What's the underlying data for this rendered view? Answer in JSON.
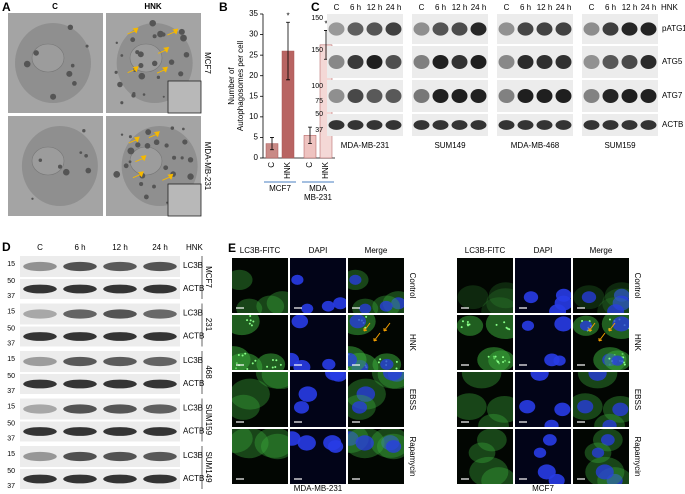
{
  "panel_a": {
    "label": "A",
    "conditions": [
      "C",
      "HNK"
    ],
    "cell_lines": [
      "MCF7",
      "MDA-MB-231"
    ]
  },
  "chart_data": {
    "type": "bar",
    "label": "B",
    "y_label": [
      "Number of",
      "Autophagosomes per cell"
    ],
    "categories": [
      "C",
      "HNK",
      "C",
      "HNK"
    ],
    "groups": [
      [
        "MCF7"
      ],
      [
        "MDA",
        "MB-231"
      ]
    ],
    "values": [
      3.5,
      26,
      5.5,
      27.5
    ],
    "errors": [
      1.5,
      7,
      2,
      3.5
    ],
    "markers": [
      null,
      "*",
      null,
      "*"
    ],
    "colors": [
      "#c98a86",
      "#b86462",
      "#eec3c0",
      "#f4d8d6"
    ],
    "ylim": [
      0,
      35
    ],
    "yticks": [
      0,
      5,
      10,
      15,
      20,
      25,
      30,
      35
    ]
  },
  "panel_c": {
    "label": "C",
    "lanes": [
      "C",
      "6 h",
      "12 h",
      "24 h"
    ],
    "treatment": "HNK",
    "proteins": [
      "pATG1",
      "ATG5",
      "ATG7",
      "ACTB"
    ],
    "cell_lines": [
      "MDA-MB-231",
      "SUM149",
      "MDA-MB-468",
      "SUM159"
    ],
    "markers": [
      150,
      150,
      100,
      75,
      50,
      37
    ]
  },
  "panel_d": {
    "label": "D",
    "lanes": [
      "C",
      "6 h",
      "12 h",
      "24 h"
    ],
    "treatment": "HNK",
    "proteins": [
      "LC3B",
      "ACTB"
    ],
    "cell_lines": [
      "MCF7",
      "231",
      "468",
      "SUM159",
      "SUM149"
    ],
    "markers": [
      15,
      50,
      37
    ]
  },
  "panel_e": {
    "label": "E",
    "channels": [
      "LC3B-FITC",
      "DAPI",
      "Merge"
    ],
    "conditions": [
      "Control",
      "HNK",
      "EBSS",
      "Rapamycin"
    ],
    "cell_lines": [
      "MDA-MB-231",
      "MCF7"
    ]
  }
}
